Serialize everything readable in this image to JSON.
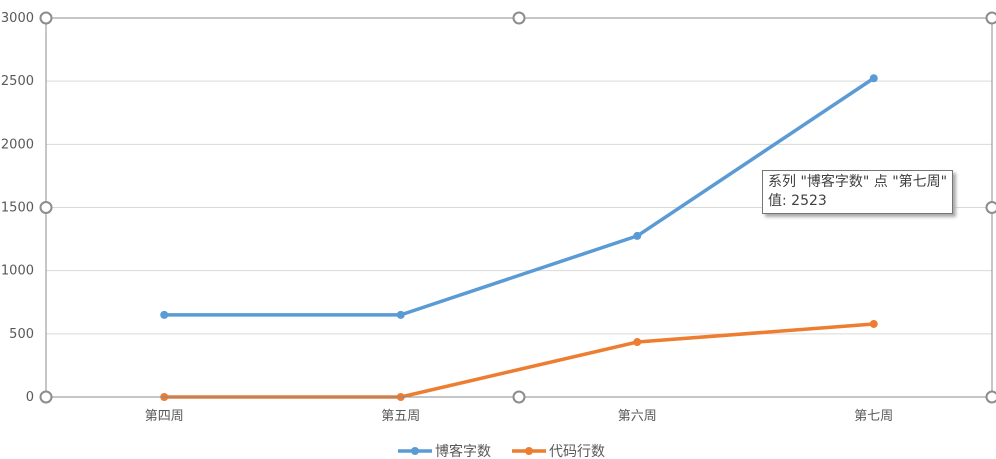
{
  "chart_data": {
    "type": "line",
    "title": "",
    "xlabel": "",
    "ylabel": "",
    "categories": [
      "第四周",
      "第五周",
      "第六周",
      "第七周"
    ],
    "ylim": [
      0,
      3000
    ],
    "yticks": [
      0,
      500,
      1000,
      1500,
      2000,
      2500,
      3000
    ],
    "grid": true,
    "legend_position": "bottom",
    "series": [
      {
        "name": "博客字数",
        "color": "#5b9bd5",
        "values": [
          650,
          650,
          1275,
          2523
        ]
      },
      {
        "name": "代码行数",
        "color": "#ed7d31",
        "values": [
          0,
          0,
          435,
          578
        ]
      }
    ],
    "tooltip": {
      "line1": "系列 \"博客字数\" 点 \"第七周\"",
      "line2": "值: 2523"
    }
  }
}
